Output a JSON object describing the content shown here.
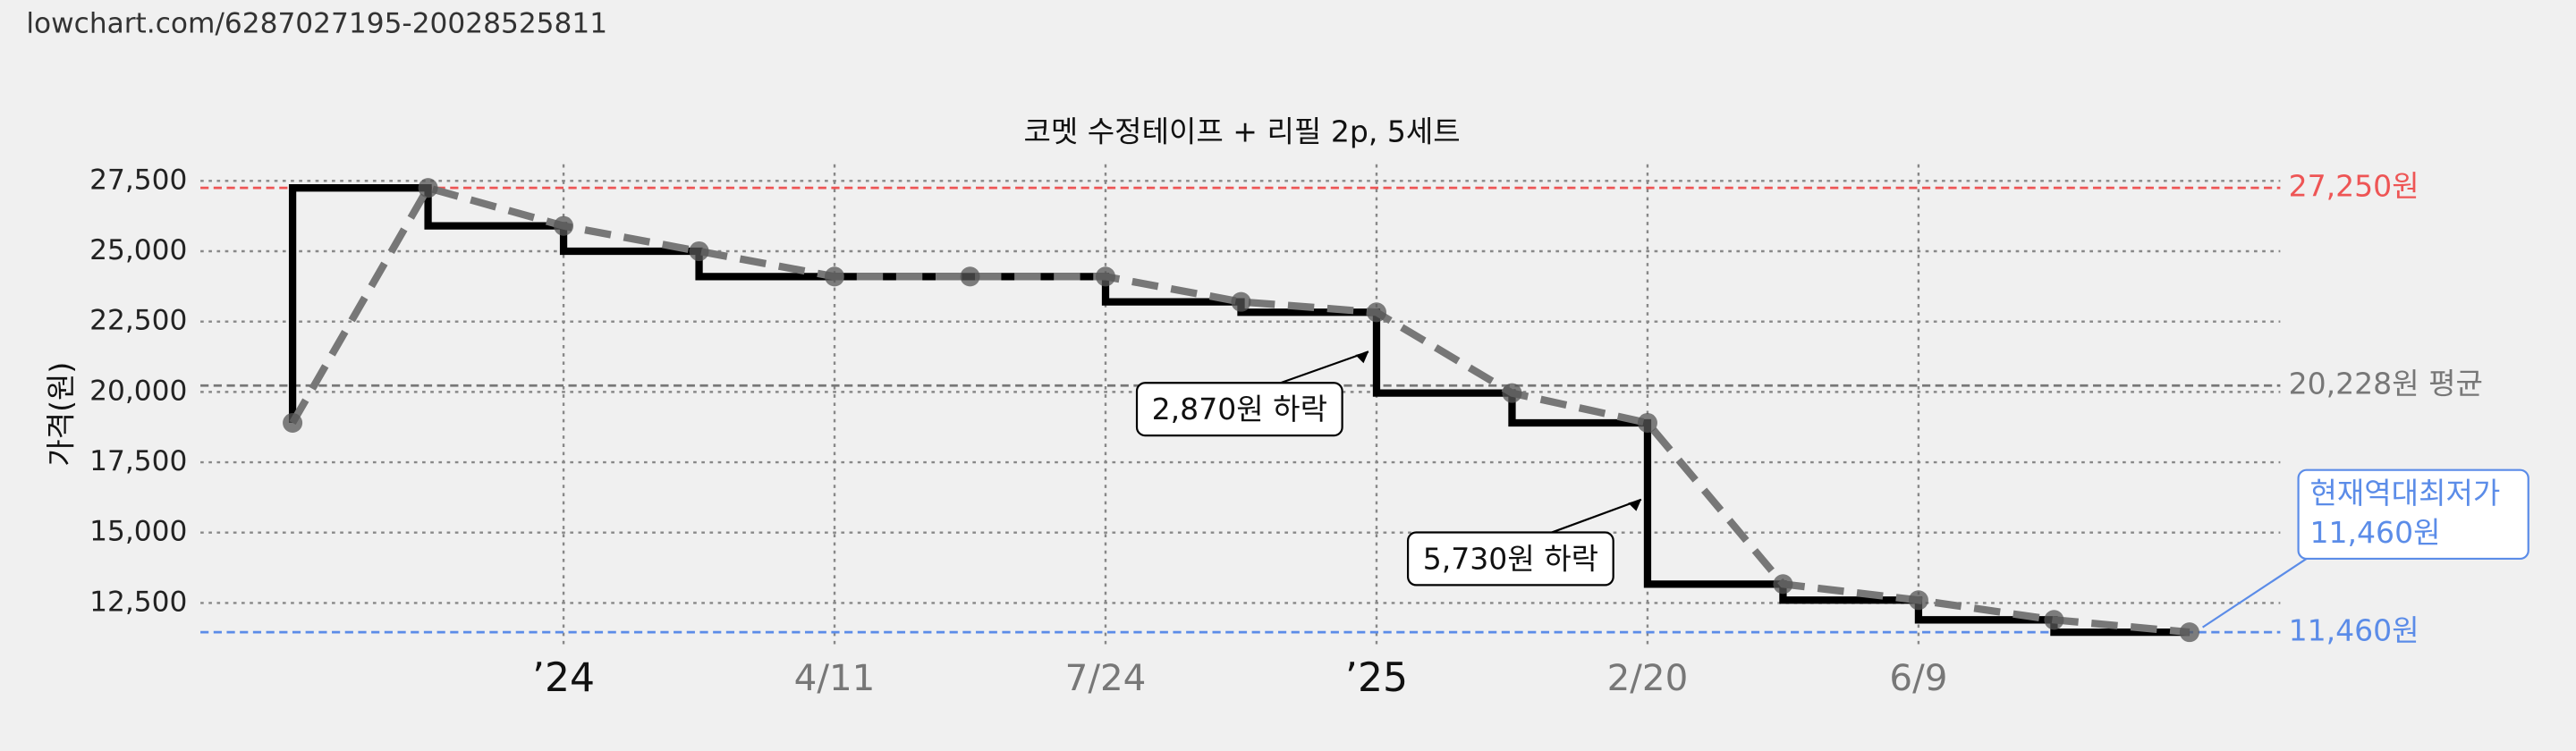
{
  "url": "lowchart.com/6287027195-20028525811",
  "chart_data": {
    "type": "line",
    "title": "코멧 수정테이프 + 리필 2p, 5세트",
    "y_label": "가격(원)",
    "xlim": [
      -0.68,
      14.67
    ],
    "ylim": [
      10860,
      28380
    ],
    "xticks": [
      {
        "value": 2,
        "label": "’24"
      },
      {
        "value": 4,
        "label": "4/11"
      },
      {
        "value": 6,
        "label": "7/24"
      },
      {
        "value": 8,
        "label": "’25"
      },
      {
        "value": 10,
        "label": "2/20"
      },
      {
        "value": 12,
        "label": "6/9"
      }
    ],
    "yticks": [
      {
        "value": 12500,
        "label": "12,500"
      },
      {
        "value": 15000,
        "label": "15,000"
      },
      {
        "value": 17500,
        "label": "17,500"
      },
      {
        "value": 20000,
        "label": "20,000"
      },
      {
        "value": 22500,
        "label": "22,500"
      },
      {
        "value": 25000,
        "label": "25,000"
      },
      {
        "value": 27500,
        "label": "27,500"
      }
    ],
    "grid": true,
    "series": [
      {
        "style": "step",
        "color": "#000000",
        "x": [
          0,
          0,
          1,
          2,
          3,
          6,
          7,
          8,
          9,
          10,
          11,
          12,
          13,
          14
        ],
        "values": [
          18900,
          27250,
          25900,
          25000,
          24100,
          23200,
          22830,
          19960,
          18900,
          13170,
          12600,
          11900,
          11460,
          11460
        ]
      },
      {
        "style": "dashed",
        "color": "#777777",
        "x": [
          0,
          1,
          2,
          3,
          4,
          5,
          6,
          7,
          8,
          9,
          10,
          11,
          12,
          13,
          14
        ],
        "values": [
          18900,
          27250,
          25900,
          25000,
          24100,
          24100,
          24100,
          23200,
          22830,
          19960,
          18900,
          13170,
          12600,
          11900,
          11460
        ]
      }
    ],
    "reference_lines": [
      {
        "value": 27250,
        "label": "27,250원",
        "color": "#ee5555"
      },
      {
        "value": 20228,
        "label": "20,228원 평균",
        "color": "#777777"
      },
      {
        "value": 11460,
        "label": "11,460원",
        "color": "#5b8ce8"
      }
    ],
    "annotations": [
      {
        "text": "2,870원 하락"
      },
      {
        "text": "5,730원 하락"
      },
      {
        "text": [
          "현재역대최저가",
          "11,460원"
        ]
      }
    ]
  }
}
